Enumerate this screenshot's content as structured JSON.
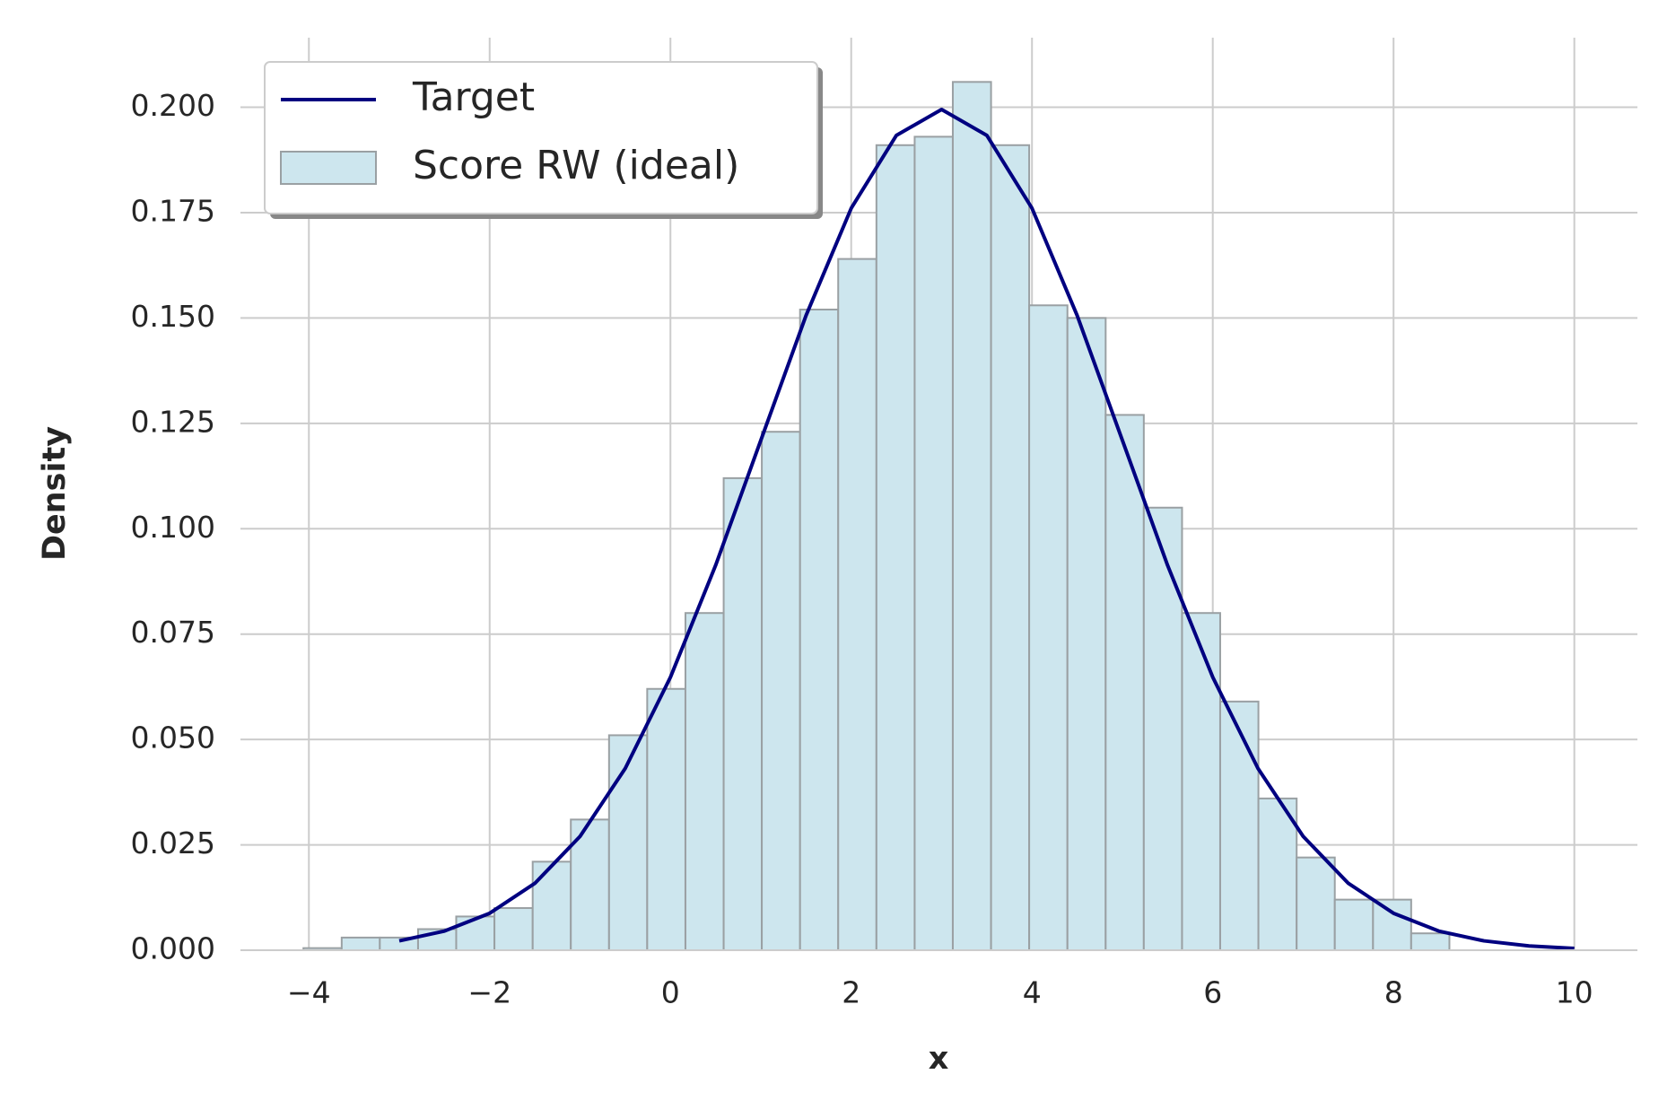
{
  "chart_data": {
    "type": "histogram",
    "xlabel": "x",
    "ylabel": "Density",
    "xlim": [
      -4.757,
      10.698
    ],
    "ylim": [
      0,
      0.2165
    ],
    "xticks": [
      {
        "value": -4,
        "label": "−4"
      },
      {
        "value": -2,
        "label": "−2"
      },
      0,
      2,
      4,
      6,
      8,
      10
    ],
    "yticks": [
      {
        "value": 0,
        "label": "0.000"
      },
      {
        "value": 0.025,
        "label": "0.025"
      },
      {
        "value": 0.05,
        "label": "0.050"
      },
      {
        "value": 0.075,
        "label": "0.075"
      },
      {
        "value": 0.1,
        "label": "0.100"
      },
      {
        "value": 0.125,
        "label": "0.125"
      },
      {
        "value": 0.15,
        "label": "0.150"
      },
      {
        "value": 0.175,
        "label": "0.175"
      },
      {
        "value": 0.2,
        "label": "0.200"
      }
    ],
    "grid": true,
    "legend": "upper left",
    "series": [
      {
        "type": "line",
        "name": "Target",
        "color": "#000080",
        "x": [
          -3,
          -2.5,
          -2,
          -1.5,
          -1,
          -0.5,
          0,
          0.5,
          1,
          1.5,
          2,
          2.5,
          3,
          3.5,
          4,
          4.5,
          5,
          5.5,
          6,
          6.5,
          7,
          7.5,
          8,
          8.5,
          9,
          9.5,
          10
        ],
        "values": [
          0.00222,
          0.004546,
          0.008764,
          0.01587,
          0.027,
          0.04314,
          0.06476,
          0.09132,
          0.12099,
          0.15057,
          0.17603,
          0.19333,
          0.19947,
          0.19333,
          0.17603,
          0.15057,
          0.12099,
          0.09132,
          0.06476,
          0.04314,
          0.027,
          0.01587,
          0.008764,
          0.004546,
          0.00222,
          0.001014,
          0.000436
        ]
      },
      {
        "type": "histogram",
        "name": "Score RW (ideal)",
        "color": "#cde6ee",
        "edgecolor": "#9aa0a3",
        "bins": [
          -4.06,
          -3.637,
          -3.215,
          -2.792,
          -2.37,
          -1.947,
          -1.524,
          -1.102,
          -0.679,
          -0.257,
          0.166,
          0.589,
          1.011,
          1.434,
          1.856,
          2.279,
          2.702,
          3.124,
          3.547,
          3.969,
          4.392,
          4.815,
          5.237,
          5.66,
          6.082,
          6.505,
          6.928,
          7.35,
          7.773,
          8.195,
          8.618
        ],
        "values": [
          0.0005,
          0.003,
          0.003,
          0.005,
          0.008,
          0.01,
          0.021,
          0.031,
          0.051,
          0.062,
          0.08,
          0.112,
          0.123,
          0.152,
          0.164,
          0.191,
          0.193,
          0.206,
          0.191,
          0.153,
          0.15,
          0.127,
          0.105,
          0.08,
          0.059,
          0.036,
          0.022,
          0.012,
          0.012,
          0.004
        ]
      }
    ]
  }
}
